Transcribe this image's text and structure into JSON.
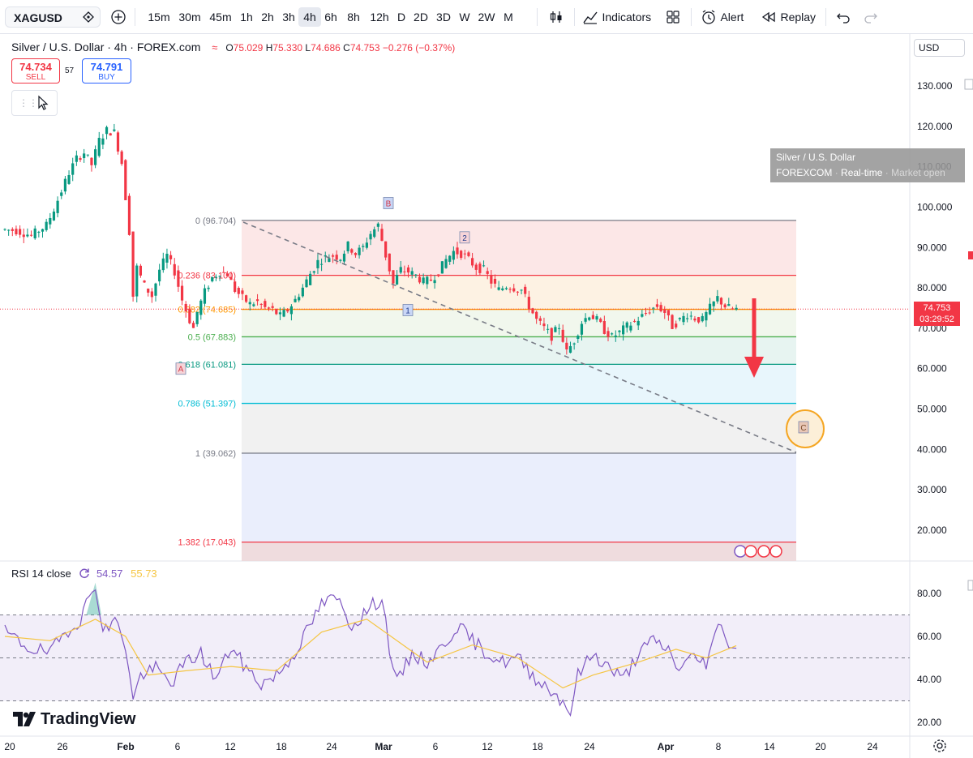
{
  "toolbar": {
    "symbol": "XAGUSD",
    "intervals": [
      "15m",
      "30m",
      "45m",
      "1h",
      "2h",
      "3h",
      "4h",
      "6h",
      "8h",
      "12h",
      "D",
      "2D",
      "3D",
      "W",
      "2W",
      "M"
    ],
    "active_interval": "4h",
    "indicators_label": "Indicators",
    "alert_label": "Alert",
    "replay_label": "Replay",
    "icons": [
      "diamond-icon",
      "add-icon",
      "candles-icon",
      "indicators-icon",
      "layout-icon",
      "alert-icon",
      "replay-icon",
      "undo-icon",
      "redo-icon"
    ]
  },
  "legend": {
    "title": "Silver / U.S. Dollar · 4h · FOREX.com",
    "wave_icon": "≈",
    "o_label": "O",
    "o": "75.029",
    "h_label": "H",
    "h": "75.330",
    "l_label": "L",
    "l": "74.686",
    "c_label": "C",
    "c": "74.753",
    "change": "−0.276 (−0.37%)",
    "sell_price": "74.734",
    "sell_label": "SELL",
    "spread": "57",
    "buy_price": "74.791",
    "buy_label": "BUY"
  },
  "scale": {
    "currency": "USD",
    "current_price": "74.753",
    "countdown": "03:29:52"
  },
  "tooltip": {
    "name": "Silver / U.S. Dollar",
    "source": "FOREXCOM",
    "mode": "Real-time",
    "status": "Market open"
  },
  "rsi": {
    "label": "RSI 14 close",
    "value": "54.57",
    "ma_value": "55.73"
  },
  "brand": "TradingView",
  "chart_data": {
    "type": "candlestick",
    "symbol": "XAGUSD",
    "interval": "4h",
    "price_axis_ticks": [
      130,
      120,
      110,
      100,
      90,
      80,
      70,
      60,
      50,
      40,
      30,
      20
    ],
    "time_axis_labels": [
      "20",
      "26",
      "Feb",
      "6",
      "12",
      "18",
      "24",
      "Mar",
      "6",
      "12",
      "18",
      "24",
      "Apr",
      "8",
      "14",
      "20",
      "24"
    ],
    "price_path": [
      [
        0,
        94.5
      ],
      [
        2,
        94.2
      ],
      [
        4,
        93.0
      ],
      [
        6,
        95.5
      ],
      [
        7,
        99.5
      ],
      [
        8,
        104.0
      ],
      [
        9,
        108.5
      ],
      [
        10,
        112.0
      ],
      [
        11,
        113.5
      ],
      [
        12,
        110.5
      ],
      [
        13,
        116.5
      ],
      [
        14,
        119.0
      ],
      [
        15,
        118.5
      ],
      [
        16,
        111.0
      ],
      [
        17,
        94.0
      ],
      [
        17.5,
        78.0
      ],
      [
        18,
        85.0
      ],
      [
        19,
        80.5
      ],
      [
        20,
        78.0
      ],
      [
        21,
        84.5
      ],
      [
        22,
        88.0
      ],
      [
        23,
        84.0
      ],
      [
        24,
        77.0
      ],
      [
        25,
        72.0
      ],
      [
        25.5,
        70.0
      ],
      [
        26,
        74.0
      ],
      [
        27,
        79.0
      ],
      [
        28,
        82.5
      ],
      [
        29,
        84.0
      ],
      [
        30,
        83.5
      ],
      [
        31,
        79.5
      ],
      [
        32,
        77.5
      ],
      [
        33,
        76.0
      ],
      [
        34,
        76.5
      ],
      [
        35,
        75.0
      ],
      [
        36,
        74.5
      ],
      [
        37,
        73.0
      ],
      [
        38,
        74.5
      ],
      [
        39,
        77.0
      ],
      [
        40,
        80.0
      ],
      [
        41,
        83.5
      ],
      [
        42,
        86.5
      ],
      [
        43,
        87.5
      ],
      [
        44,
        88.0
      ],
      [
        45,
        87.5
      ],
      [
        46,
        90.5
      ],
      [
        47,
        88.5
      ],
      [
        48,
        90.0
      ],
      [
        49,
        93.5
      ],
      [
        50,
        95.5
      ],
      [
        51,
        88.0
      ],
      [
        52,
        81.0
      ],
      [
        53,
        84.5
      ],
      [
        54,
        84.0
      ],
      [
        55,
        83.0
      ],
      [
        56,
        81.5
      ],
      [
        57,
        82.0
      ],
      [
        58,
        84.0
      ],
      [
        59,
        87.0
      ],
      [
        60,
        89.0
      ],
      [
        61,
        88.5
      ],
      [
        62,
        87.0
      ],
      [
        63,
        85.0
      ],
      [
        64,
        84.5
      ],
      [
        65,
        81.5
      ],
      [
        66,
        79.5
      ],
      [
        67,
        80.5
      ],
      [
        68,
        80.0
      ],
      [
        69,
        79.5
      ],
      [
        70,
        75.5
      ],
      [
        71,
        72.0
      ],
      [
        72,
        70.0
      ],
      [
        73,
        68.0
      ],
      [
        74,
        70.5
      ],
      [
        75,
        64.0
      ],
      [
        76,
        67.0
      ],
      [
        77,
        71.5
      ],
      [
        78,
        73.5
      ],
      [
        79,
        72.0
      ],
      [
        80,
        69.5
      ],
      [
        81,
        67.8
      ],
      [
        82,
        69.0
      ],
      [
        83,
        70.5
      ],
      [
        84,
        71.5
      ],
      [
        85,
        73.0
      ],
      [
        86,
        74.5
      ],
      [
        87,
        75.5
      ],
      [
        88,
        74.0
      ],
      [
        89,
        70.5
      ],
      [
        90,
        72.0
      ],
      [
        91,
        73.5
      ],
      [
        92,
        72.5
      ],
      [
        93,
        72.0
      ],
      [
        94,
        75.0
      ],
      [
        95,
        77.5
      ],
      [
        96,
        75.5
      ],
      [
        97,
        74.7
      ]
    ],
    "price_path_note_units": "x = 4h bar index from first visible bar, y = price USD",
    "fibonacci": [
      {
        "level": "0",
        "price": 96.704,
        "label": "0 (96.704)",
        "color": "#787b86"
      },
      {
        "level": "0.236",
        "price": 83.1,
        "label": "0.236 (83.100)",
        "color": "#f23645"
      },
      {
        "level": "0.382",
        "price": 74.685,
        "label": "0.382 (74.685)",
        "color": "#ff9800"
      },
      {
        "level": "0.5",
        "price": 67.883,
        "label": "0.5 (67.883)",
        "color": "#4caf50"
      },
      {
        "level": "0.618",
        "price": 61.081,
        "label": "0.618 (61.081)",
        "color": "#089981"
      },
      {
        "level": "0.786",
        "price": 51.397,
        "label": "0.786 (51.397)",
        "color": "#00bcd4"
      },
      {
        "level": "1",
        "price": 39.062,
        "label": "1 (39.062)",
        "color": "#787b86"
      },
      {
        "level": "1.382",
        "price": 17.043,
        "label": "1.382 (17.043)",
        "color": "#f23645"
      }
    ],
    "wave_labels": [
      {
        "text": "A",
        "price": 60.0
      },
      {
        "text": "B",
        "price": 101.0
      },
      {
        "text": "1",
        "price": 74.5
      },
      {
        "text": "2",
        "price": 92.5
      },
      {
        "text": "C",
        "price": 45.5
      }
    ],
    "rsi_axis_ticks": [
      80,
      60,
      40,
      20
    ],
    "rsi_band": [
      30,
      70
    ],
    "rsi_path": [
      [
        0,
        62
      ],
      [
        3,
        55
      ],
      [
        6,
        52
      ],
      [
        8,
        62
      ],
      [
        10,
        68
      ],
      [
        12,
        85
      ],
      [
        13,
        62
      ],
      [
        15,
        68
      ],
      [
        16,
        55
      ],
      [
        17,
        30
      ],
      [
        18,
        42
      ],
      [
        20,
        45
      ],
      [
        22,
        38
      ],
      [
        24,
        48
      ],
      [
        26,
        52
      ],
      [
        28,
        40
      ],
      [
        30,
        55
      ],
      [
        32,
        45
      ],
      [
        34,
        38
      ],
      [
        36,
        42
      ],
      [
        38,
        50
      ],
      [
        40,
        62
      ],
      [
        42,
        75
      ],
      [
        44,
        78
      ],
      [
        46,
        65
      ],
      [
        48,
        72
      ],
      [
        50,
        78
      ],
      [
        51,
        55
      ],
      [
        52,
        38
      ],
      [
        54,
        52
      ],
      [
        56,
        48
      ],
      [
        58,
        55
      ],
      [
        60,
        65
      ],
      [
        62,
        58
      ],
      [
        64,
        52
      ],
      [
        66,
        48
      ],
      [
        68,
        50
      ],
      [
        70,
        42
      ],
      [
        72,
        36
      ],
      [
        74,
        30
      ],
      [
        75,
        25
      ],
      [
        76,
        42
      ],
      [
        78,
        52
      ],
      [
        80,
        46
      ],
      [
        82,
        40
      ],
      [
        84,
        52
      ],
      [
        86,
        58
      ],
      [
        88,
        54
      ],
      [
        89,
        45
      ],
      [
        91,
        50
      ],
      [
        93,
        48
      ],
      [
        95,
        68
      ],
      [
        96,
        56
      ],
      [
        97,
        54.5
      ]
    ],
    "rsi_ma_path": [
      [
        0,
        60
      ],
      [
        6,
        58
      ],
      [
        12,
        68
      ],
      [
        16,
        60
      ],
      [
        19,
        42
      ],
      [
        24,
        44
      ],
      [
        30,
        46
      ],
      [
        36,
        44
      ],
      [
        42,
        62
      ],
      [
        48,
        68
      ],
      [
        52,
        58
      ],
      [
        56,
        48
      ],
      [
        62,
        56
      ],
      [
        68,
        50
      ],
      [
        74,
        36
      ],
      [
        78,
        42
      ],
      [
        84,
        48
      ],
      [
        89,
        54
      ],
      [
        93,
        50
      ],
      [
        97,
        55.7
      ]
    ]
  }
}
